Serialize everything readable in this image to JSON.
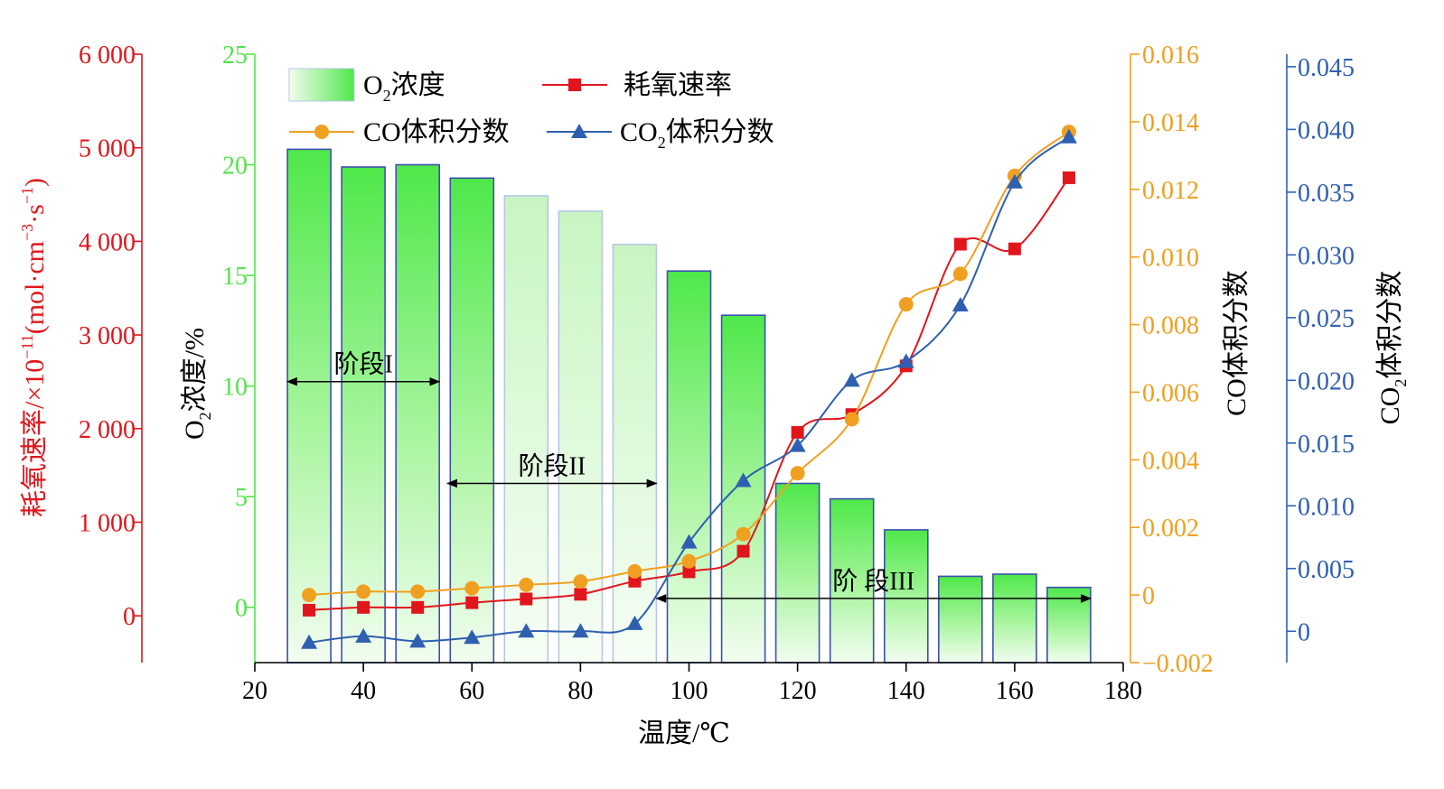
{
  "chart_data": {
    "type": "bar",
    "x": [
      30,
      40,
      50,
      60,
      70,
      80,
      90,
      100,
      110,
      120,
      130,
      140,
      150,
      160,
      170
    ],
    "xlabel": "温度/℃",
    "xlim": [
      20,
      180
    ],
    "xticks": [
      "20",
      "40",
      "60",
      "80",
      "100",
      "120",
      "140",
      "160",
      "180"
    ],
    "axes": {
      "o2": {
        "label_main": "O",
        "label_sub": "2",
        "label_rest": "浓度/%",
        "ylim": [
          -2.5,
          25
        ],
        "ticks": [
          "0",
          "5",
          "10",
          "15",
          "20",
          "25"
        ],
        "color": "#55e24d"
      },
      "rate": {
        "label_main": "耗氧速率/×10",
        "label_sup1": "−11",
        "label_mid": "(mol·cm",
        "label_sup2": "−3",
        "label_mid2": "·s",
        "label_sup3": "−1",
        "label_end": ")",
        "ylim": [
          -500,
          6000
        ],
        "ticks": [
          "0",
          "1 000",
          "2 000",
          "3 000",
          "4 000",
          "5 000",
          "6 000"
        ],
        "color": "#e0161c"
      },
      "co": {
        "label": "CO体积分数",
        "ylim": [
          -0.002,
          0.016
        ],
        "ticks": [
          "−0.002",
          "0",
          "0.002",
          "0.004",
          "0.006",
          "0.008",
          "0.010",
          "0.012",
          "0.014",
          "0.016"
        ],
        "color": "#f0a020"
      },
      "co2": {
        "label_main": "CO",
        "label_sub": "2",
        "label_rest": "体积分数",
        "ylim": [
          -0.0025,
          0.046
        ],
        "ticks": [
          "0",
          "0.005",
          "0.010",
          "0.015",
          "0.020",
          "0.025",
          "0.030",
          "0.035",
          "0.040",
          "0.045"
        ],
        "color": "#2f5fb0"
      }
    },
    "series": [
      {
        "name": "O₂浓度",
        "legend_main": "O",
        "legend_sub": "2",
        "legend_rest": "浓度",
        "axis": "o2",
        "kind": "bar",
        "values": [
          20.7,
          19.9,
          20.0,
          19.4,
          18.6,
          17.9,
          16.4,
          15.2,
          13.2,
          5.6,
          4.9,
          3.5,
          1.4,
          1.5,
          0.9
        ]
      },
      {
        "name": "耗氧速率",
        "axis": "rate",
        "kind": "line",
        "marker": "square",
        "values": [
          60,
          90,
          90,
          140,
          180,
          230,
          370,
          470,
          690,
          1960,
          2150,
          2670,
          3970,
          3920,
          4680
        ]
      },
      {
        "name": "CO体积分数",
        "axis": "co",
        "kind": "line",
        "marker": "circle",
        "values": [
          0.0,
          0.0001,
          0.0001,
          0.0002,
          0.0003,
          0.0004,
          0.0007,
          0.001,
          0.0018,
          0.0036,
          0.0052,
          0.0086,
          0.0095,
          0.0124,
          0.0137
        ]
      },
      {
        "name": "CO₂体积分数",
        "legend_main": "CO",
        "legend_sub": "2",
        "legend_rest": "体积分数",
        "axis": "co2",
        "kind": "line",
        "marker": "triangle",
        "values": [
          -0.0009,
          -0.0004,
          -0.0008,
          -0.0005,
          0.0,
          -0.0,
          0.0006,
          0.0071,
          0.012,
          0.0148,
          0.02,
          0.0215,
          0.026,
          0.0358,
          0.0394
        ]
      }
    ],
    "annotations": [
      {
        "text": "阶段I",
        "from": 26,
        "to": 54,
        "o2_y": 10.2
      },
      {
        "text": "阶段II",
        "from": 55.5,
        "to": 94,
        "o2_y": 5.6
      },
      {
        "text": "阶 段III",
        "from": 94,
        "to": 174,
        "o2_y": 0.4
      }
    ]
  }
}
